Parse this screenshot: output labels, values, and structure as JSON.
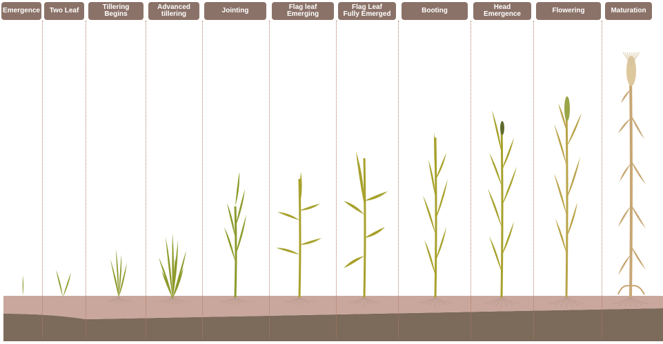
{
  "stages": [
    {
      "id": "emergence",
      "label": "Emergence"
    },
    {
      "id": "two-leaf",
      "label": "Two Leaf"
    },
    {
      "id": "tillering-begins",
      "label": "Tillering\nBegins"
    },
    {
      "id": "advanced-tillering",
      "label": "Advanced\ntillering"
    },
    {
      "id": "jointing",
      "label": "Jointing"
    },
    {
      "id": "flag-leaf-emerging",
      "label": "Flag leaf\nEmerging"
    },
    {
      "id": "flag-leaf-fully-emerged",
      "label": "Flag Leaf\nFully Emerged"
    },
    {
      "id": "booting",
      "label": "Booting"
    },
    {
      "id": "head-emergence",
      "label": "Head\nEmergence"
    },
    {
      "id": "flowering",
      "label": "Flowering"
    },
    {
      "id": "maturation",
      "label": "Maturation"
    }
  ],
  "colors": {
    "label_bg": "#8b7268",
    "label_text": "#ffffff",
    "divider": "#b07a66",
    "soil_top": "#c9a79c",
    "soil_deep": "#7c6a5a",
    "leaf_young": "#8c9a2a",
    "leaf_mid": "#a7a12c",
    "leaf_dry": "#c8a775",
    "root": "#b89c90"
  }
}
